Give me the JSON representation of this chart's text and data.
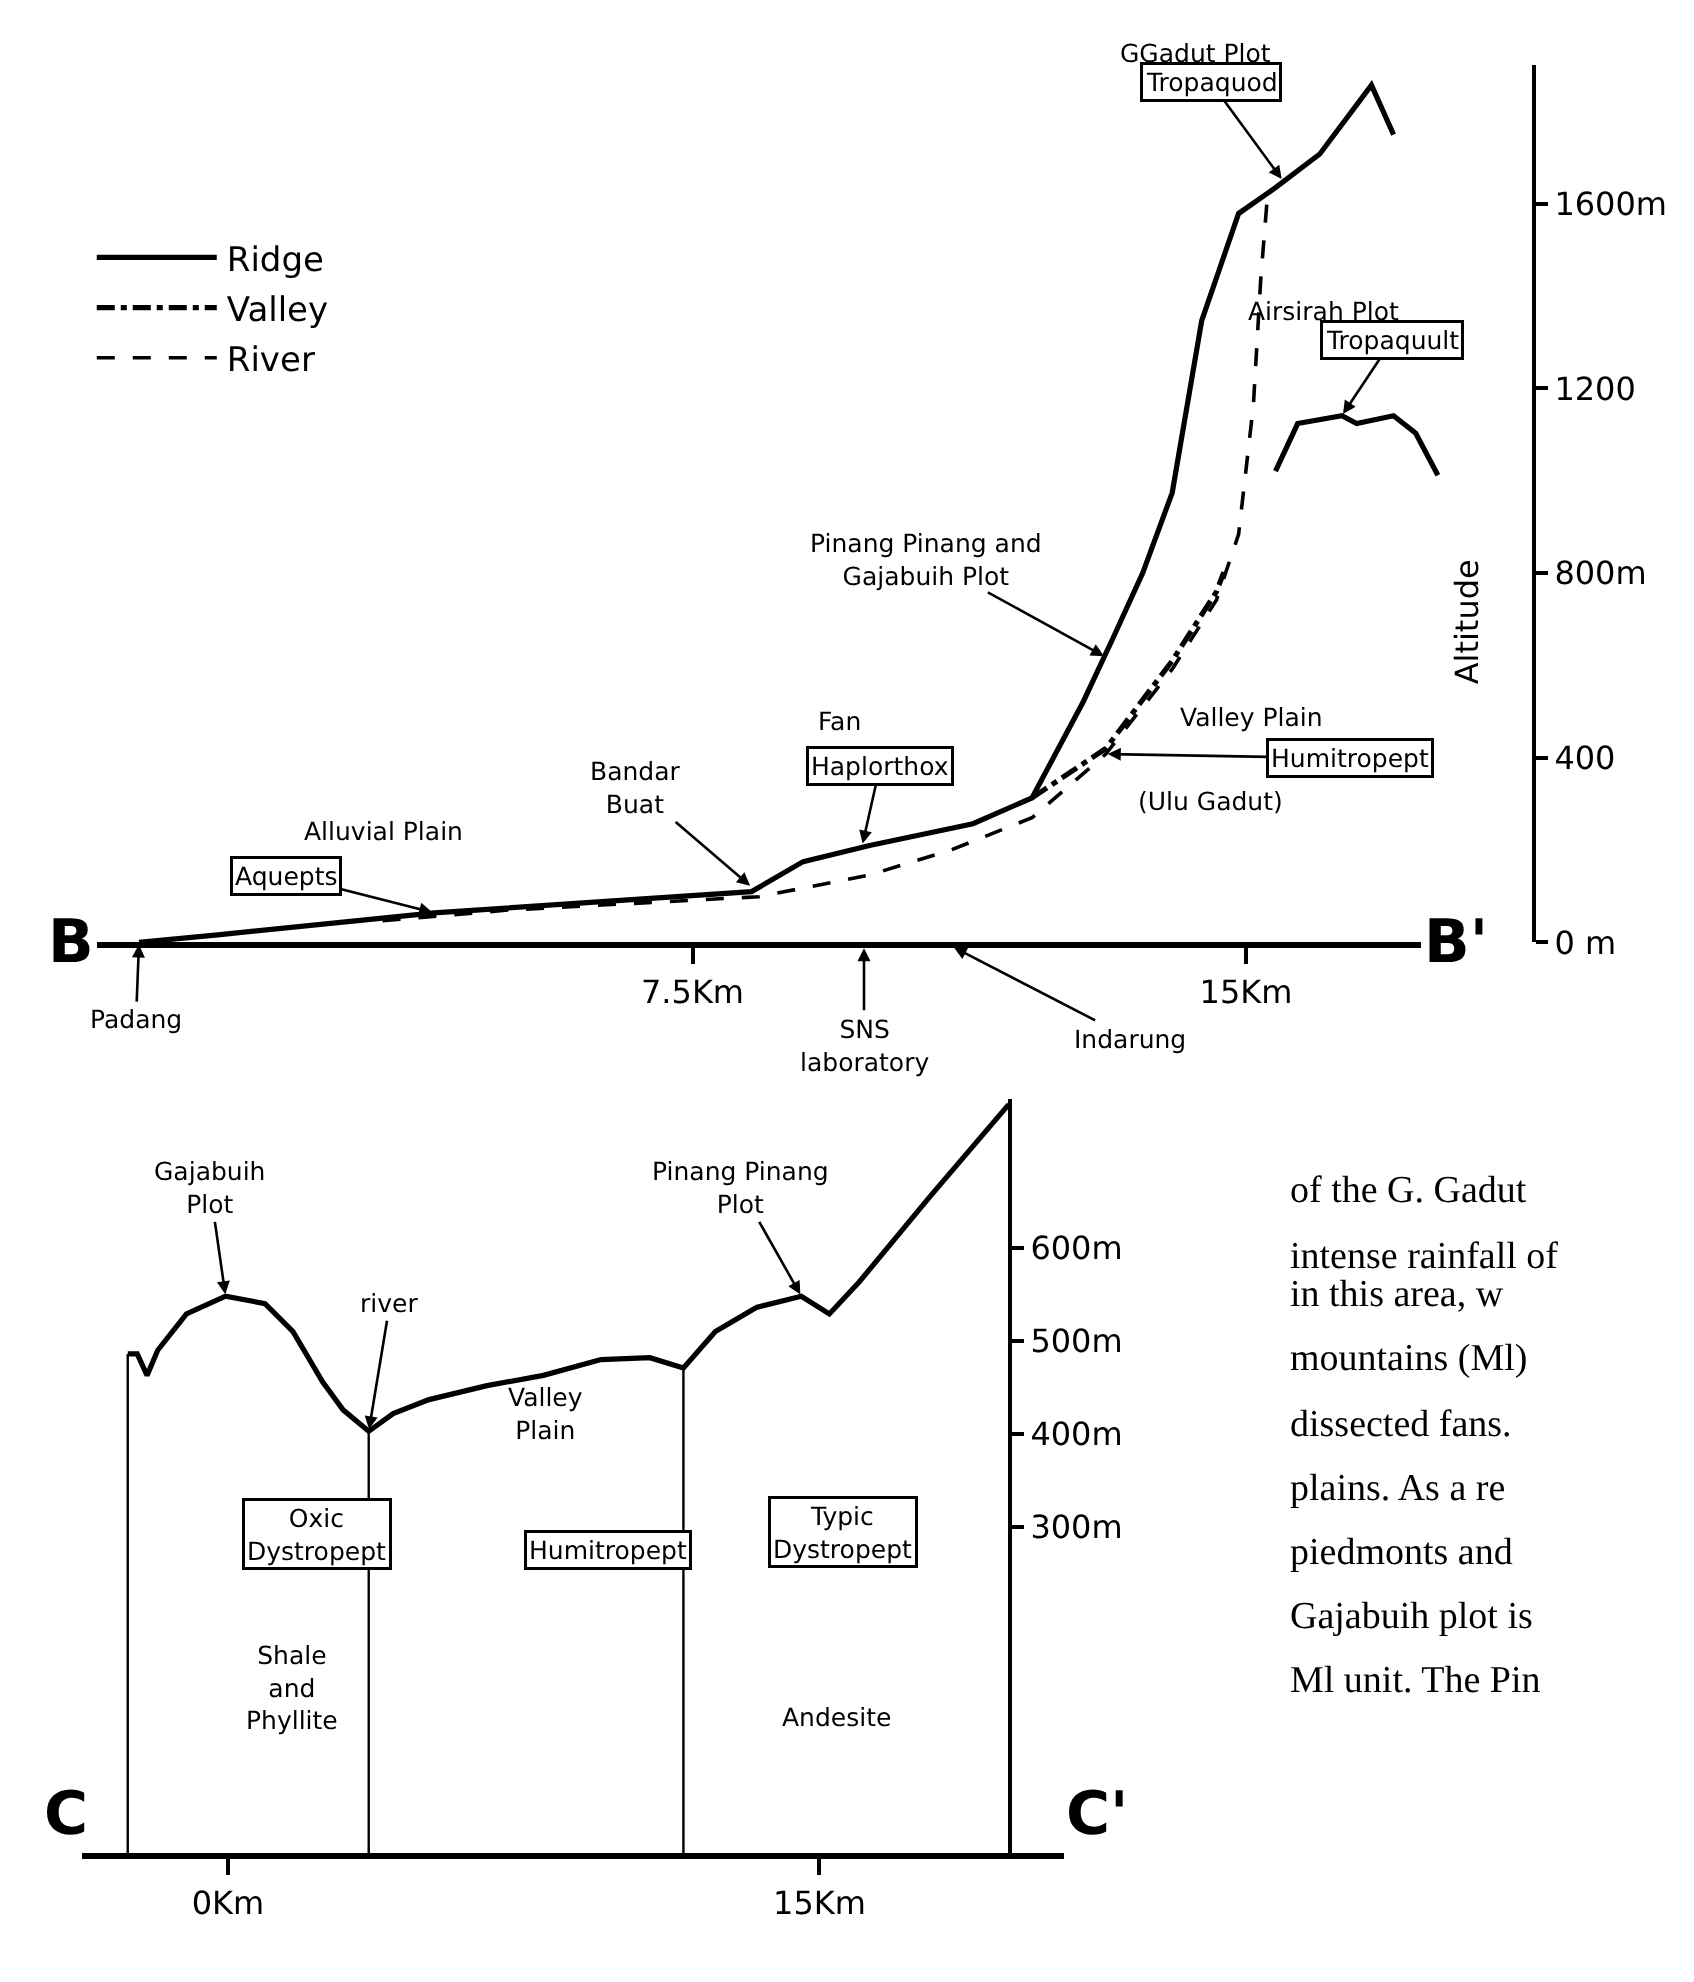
{
  "chart_data": [
    {
      "type": "line",
      "ylabel": "Altitude",
      "legend": "top left",
      "grid": false,
      "xlim": [
        -0.8,
        17.9
      ],
      "ylim": [
        0,
        1900
      ],
      "xticks": [
        {
          "value": 7.5,
          "label": "7.5Km"
        },
        {
          "value": 15,
          "label": "15Km"
        }
      ],
      "yticks": [
        {
          "value": 0,
          "label": "0 m"
        },
        400,
        {
          "value": 800,
          "label": "800m"
        },
        1200,
        {
          "value": 1600,
          "label": "1600m"
        }
      ],
      "series": [
        {
          "name": "Ridge",
          "color": "#000000",
          "line_style": "solid",
          "x": [
            0,
            1.1,
            4.0,
            8.3,
            9.0,
            9.9,
            11.3,
            12.1,
            12.8,
            13.2,
            13.6,
            14.0,
            14.4,
            14.9,
            15.4,
            16.0,
            16.7,
            17.0
          ],
          "values": [
            0,
            17,
            64,
            110,
            175,
            210,
            257,
            313,
            523,
            660,
            800,
            974,
            1347,
            1579,
            1635,
            1708,
            1857,
            1750
          ]
        },
        {
          "name": "Valley",
          "color": "#000000",
          "line_style": "dashdot",
          "x": [
            12.1,
            13.1,
            14.0,
            14.6,
            14.7
          ],
          "values": [
            313,
            420,
            610,
            760,
            802
          ]
        },
        {
          "name": "River",
          "color": "#000000",
          "line_style": "dashed",
          "x": [
            3.3,
            5.0,
            8.4,
            9.9,
            11.0,
            12.1,
            13.1,
            14.0,
            14.6,
            14.9,
            15.1,
            15.2,
            15.3
          ],
          "values": [
            47,
            70,
            99,
            146,
            200,
            270,
            408,
            592,
            742,
            884,
            1163,
            1437,
            1635
          ]
        },
        {
          "color": "#000000",
          "line_style": "solid",
          "x": [
            15.4,
            15.7,
            16.3,
            16.5,
            17.0,
            17.3,
            17.6
          ],
          "values": [
            1021,
            1124,
            1141,
            1124,
            1141,
            1103,
            1012
          ]
        }
      ],
      "annotations": [
        "B",
        "B'",
        {
          "text": "Padang",
          "x": 0,
          "y": 0
        },
        "SNS\nlaboratory",
        "Indarung",
        "Alluvial Plain",
        {
          "text": "Aquepts",
          "x": 4.0,
          "y": 64
        },
        {
          "text": "Bandar\nBuat",
          "x": 8.3,
          "y": 120
        },
        "Fan",
        {
          "text": "Haplorthox",
          "x": 9.8,
          "y": 210
        },
        "Valley Plain",
        {
          "text": "Humitropept",
          "x": 13.1,
          "y": 408
        },
        "(Ulu Gadut)",
        {
          "text": "Pinang Pinang and\nGajabuih Plot",
          "x": 13.1,
          "y": 618
        },
        "Airsirah Plot",
        {
          "text": "Tropaquult",
          "x": 16.3,
          "y": 1141
        },
        "GGadut Plot",
        {
          "text": "Tropaquod",
          "x": 15.5,
          "y": 1650
        }
      ]
    },
    {
      "type": "line",
      "grid": false,
      "xlim": [
        -3.7,
        21.2
      ],
      "ylim": [
        -50,
        760
      ],
      "xticks": [
        {
          "value": 0,
          "label": "0Km"
        },
        {
          "value": 15,
          "label": "15Km"
        }
      ],
      "yticks": [
        {
          "value": 600,
          "label": "600m"
        },
        {
          "value": 500,
          "label": "500m"
        },
        {
          "value": 400,
          "label": "400m"
        },
        {
          "value": 300,
          "label": "300m"
        }
      ],
      "series": [
        {
          "color": "#000000",
          "x": [
            -2.54,
            -2.3,
            -2.05,
            -1.78,
            -1.05,
            -0.06,
            0.94,
            1.65,
            2.4,
            2.92,
            3.57,
            4.19,
            5.1,
            6.57,
            8.0,
            9.46,
            10.7,
            11.55,
            12.36,
            13.4,
            14.54,
            15.25,
            16.0,
            17.8,
            19.8
          ],
          "values": [
            486,
            486,
            463,
            490,
            529,
            548,
            540,
            510,
            456,
            426,
            403,
            422,
            437,
            452,
            463,
            480,
            482,
            471,
            510,
            536,
            548,
            529,
            563,
            655,
            754
          ]
        }
      ],
      "ref_lines": [
        {
          "axis": "x",
          "value": -2.54,
          "label": null
        },
        {
          "axis": "x",
          "value": 3.57,
          "label": null
        },
        {
          "axis": "x",
          "value": 11.55,
          "label": null
        }
      ],
      "annotations": [
        "C",
        "C'",
        {
          "text": "Gajabuih\nPlot",
          "x": -0.06,
          "y": 548
        },
        {
          "text": "river",
          "x": 3.57,
          "y": 403
        },
        "Valley\nPlain",
        {
          "text": "Pinang Pinang\nPlot",
          "x": 14.54,
          "y": 548
        },
        "Oxic\nDystropept",
        "Humitropept",
        "Typic\nDystropept",
        "Shale\nand\nPhyllite",
        "Andesite"
      ]
    },
    {
      "type": "other",
      "annotations": [
        "of the G. Gadut",
        "intense rainfall of",
        "in this area, w",
        "mountains (Ml)",
        "dissected fans.",
        "plains. As a re",
        "piedmonts and",
        "Gajabuih plot is",
        "Ml unit. The Pin"
      ]
    }
  ]
}
